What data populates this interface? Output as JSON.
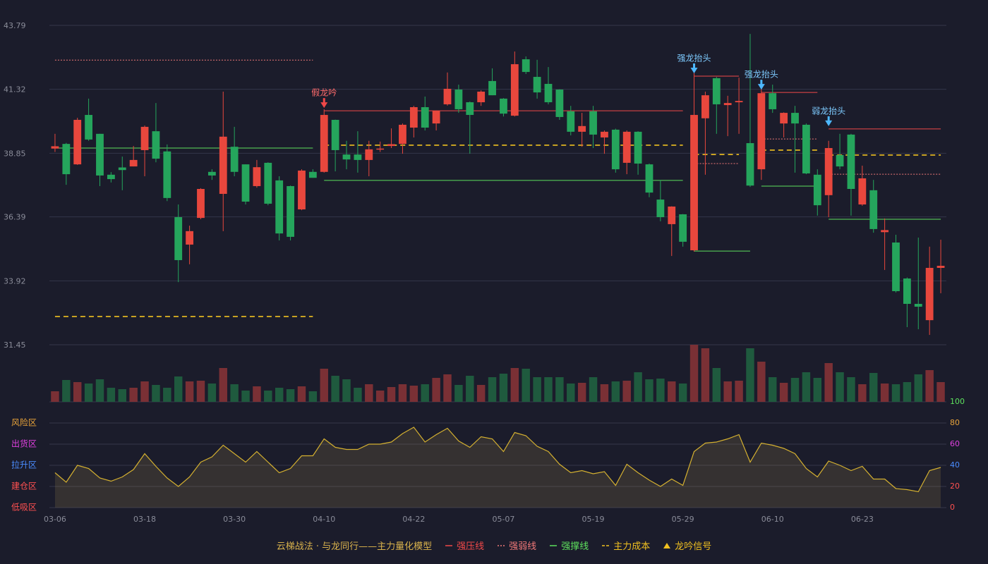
{
  "chart_data": {
    "type": "candlestick",
    "categories": [
      "03-06",
      null,
      null,
      null,
      null,
      null,
      null,
      null,
      "03-18",
      null,
      null,
      null,
      null,
      null,
      null,
      null,
      "03-30",
      null,
      null,
      null,
      null,
      null,
      null,
      null,
      "04-10",
      null,
      null,
      null,
      null,
      null,
      null,
      null,
      "04-22",
      null,
      null,
      null,
      null,
      null,
      null,
      null,
      "05-07",
      null,
      null,
      null,
      null,
      null,
      null,
      null,
      "05-19",
      null,
      null,
      null,
      null,
      null,
      null,
      null,
      "05-29",
      null,
      null,
      null,
      null,
      null,
      null,
      null,
      "06-10",
      null,
      null,
      null,
      null,
      null,
      null,
      null,
      "06-23",
      null,
      null,
      null,
      null,
      null,
      null,
      null
    ],
    "open": [
      39.03,
      39.21,
      38.42,
      40.33,
      39.6,
      38.02,
      38.3,
      38.34,
      38.97,
      39.7,
      38.92,
      36.38,
      35.32,
      36.35,
      38.13,
      37.28,
      39.1,
      38.42,
      37.58,
      38.48,
      37.8,
      37.58,
      36.68,
      38.13,
      38.13,
      40.14,
      38.8,
      38.8,
      38.59,
      39.0,
      39.13,
      39.21,
      39.84,
      40.63,
      40.0,
      40.74,
      41.31,
      40.82,
      40.82,
      41.64,
      40.96,
      40.3,
      42.48,
      41.8,
      41.53,
      41.31,
      40.47,
      39.68,
      40.47,
      39.46,
      39.76,
      38.48,
      39.68,
      38.42,
      37.06,
      36.11,
      36.49,
      35.1,
      40.2,
      41.75,
      40.71,
      40.82,
      39.24,
      38.23,
      41.17,
      40.0,
      40.41,
      39.95,
      38.02,
      37.23,
      38.78,
      39.57,
      36.87,
      37.42,
      35.8,
      35.4,
      34.01,
      33.03,
      32.4,
      34.42
    ],
    "high": [
      39.6,
      39.25,
      40.22,
      40.96,
      39.6,
      38.12,
      38.72,
      39.13,
      39.92,
      40.79,
      39.19,
      36.87,
      36.05,
      37.5,
      38.23,
      41.23,
      39.87,
      38.42,
      38.59,
      38.5,
      37.96,
      37.6,
      38.23,
      38.23,
      40.55,
      40.15,
      39.33,
      39.7,
      39.33,
      39.3,
      39.81,
      40.0,
      40.68,
      41.04,
      40.5,
      41.97,
      41.5,
      40.85,
      41.28,
      42.13,
      40.98,
      42.78,
      42.59,
      42.46,
      42.18,
      41.32,
      40.68,
      40.41,
      40.68,
      39.73,
      39.8,
      39.73,
      39.7,
      38.45,
      37.82,
      36.8,
      36.5,
      42.18,
      41.23,
      41.8,
      41.07,
      41.77,
      43.46,
      41.5,
      41.5,
      40.43,
      40.68,
      40.0,
      38.23,
      39.33,
      39.6,
      39.6,
      38.37,
      37.82,
      36.33,
      35.7,
      34.05,
      35.59,
      35.24,
      35.51
    ],
    "low": [
      38.9,
      37.63,
      38.4,
      39.33,
      37.58,
      37.72,
      37.42,
      38.34,
      37.96,
      38.5,
      37.0,
      33.87,
      34.56,
      36.3,
      37.82,
      35.84,
      37.96,
      36.87,
      37.52,
      36.84,
      35.48,
      35.48,
      36.65,
      37.9,
      38.1,
      38.15,
      38.23,
      38.1,
      37.96,
      38.9,
      39.05,
      38.83,
      39.46,
      39.73,
      39.73,
      40.69,
      40.41,
      38.83,
      40.68,
      41.09,
      40.27,
      40.27,
      41.91,
      40.96,
      40.74,
      40.14,
      39.54,
      39.1,
      39.05,
      38.83,
      38.1,
      38.04,
      38.02,
      37.15,
      36.22,
      34.88,
      35.24,
      35.05,
      38.02,
      39.6,
      39.51,
      39.6,
      37.55,
      37.82,
      40.41,
      39.46,
      38.1,
      38.04,
      36.44,
      36.38,
      38.23,
      36.44,
      36.82,
      35.78,
      34.34,
      33.47,
      32.13,
      32.05,
      31.83,
      33.44
    ],
    "close": [
      39.12,
      38.04,
      40.14,
      39.38,
      37.99,
      37.85,
      38.2,
      38.59,
      39.87,
      38.64,
      37.12,
      34.72,
      35.84,
      37.47,
      37.99,
      39.49,
      38.13,
      36.98,
      38.31,
      36.9,
      35.75,
      35.62,
      38.18,
      37.9,
      40.33,
      38.97,
      38.61,
      38.59,
      39.0,
      39.03,
      39.2,
      39.95,
      40.63,
      39.84,
      40.49,
      41.34,
      40.55,
      40.33,
      41.23,
      41.09,
      40.38,
      42.29,
      41.99,
      41.2,
      40.82,
      40.25,
      39.68,
      39.9,
      39.57,
      39.68,
      38.23,
      39.68,
      38.45,
      37.33,
      36.38,
      36.79,
      35.43,
      40.33,
      41.09,
      40.74,
      40.79,
      40.87,
      37.6,
      41.17,
      40.55,
      40.41,
      40.0,
      38.07,
      36.84,
      39.05,
      38.34,
      37.47,
      37.88,
      35.92,
      35.88,
      33.52,
      33.03,
      32.92,
      34.42,
      34.5
    ],
    "volume": [
      15,
      31,
      28,
      26,
      32,
      20,
      18,
      20,
      29,
      24,
      20,
      36,
      29,
      30,
      26,
      48,
      25,
      16,
      22,
      16,
      20,
      18,
      22,
      15,
      47,
      37,
      32,
      20,
      25,
      16,
      21,
      25,
      23,
      25,
      34,
      39,
      24,
      37,
      24,
      35,
      40,
      48,
      47,
      35,
      35,
      35,
      26,
      27,
      35,
      25,
      29,
      30,
      42,
      32,
      33,
      29,
      26,
      81,
      76,
      48,
      29,
      30,
      76,
      57,
      35,
      27,
      34,
      42,
      34,
      55,
      42,
      35,
      25,
      41,
      26,
      25,
      28,
      39,
      45,
      28
    ],
    "up_color": "#e8473d",
    "down_color": "#25a55c",
    "ylim": [
      31.45,
      43.79
    ],
    "yticks": [
      31.45,
      33.92,
      36.39,
      38.85,
      41.32,
      43.79
    ],
    "grid": true,
    "signals": [
      {
        "label": "假龙吟",
        "x": 24,
        "color": "#ff6b6b"
      },
      {
        "label": "强龙抬头",
        "x": 57,
        "color": "#7ecbff"
      },
      {
        "label": "强龙抬头",
        "x": 63,
        "color": "#7ecbff"
      },
      {
        "label": "弱龙抬头",
        "x": 69,
        "color": "#7ecbff"
      }
    ],
    "indicator": {
      "values": [
        33,
        24,
        40,
        37,
        28,
        25,
        29,
        36,
        51,
        39,
        28,
        20,
        29,
        43,
        48,
        59,
        51,
        43,
        53,
        43,
        33,
        37,
        49,
        49,
        65,
        57,
        55,
        55,
        60,
        60,
        62,
        70,
        76,
        62,
        69,
        75,
        63,
        57,
        67,
        65,
        53,
        71,
        68,
        58,
        53,
        41,
        33,
        35,
        32,
        34,
        21,
        41,
        33,
        26,
        20,
        27,
        21,
        53,
        61,
        62,
        65,
        69,
        43,
        61,
        59,
        56,
        51,
        37,
        29,
        44,
        40,
        35,
        39,
        27,
        27,
        18,
        17,
        15,
        35,
        38
      ],
      "color": "#d4b030",
      "ylim": [
        0,
        100
      ],
      "yticks": [
        0,
        20,
        40,
        60,
        80,
        100
      ],
      "ytick_colors": [
        "#ff5050",
        "#ff5050",
        "#4a8cff",
        "#e040e0",
        "#e8a33a",
        "#5de05d"
      ],
      "zones": [
        {
          "label": "风险区",
          "value": 80,
          "color": "#e8a33a"
        },
        {
          "label": "出货区",
          "value": 60,
          "color": "#e040e0"
        },
        {
          "label": "拉升区",
          "value": 40,
          "color": "#4a8cff"
        },
        {
          "label": "建仓区",
          "value": 20,
          "color": "#ff5050"
        },
        {
          "label": "低吸区",
          "value": 0,
          "color": "#ff5050"
        }
      ]
    },
    "legend": {
      "title": "云梯战法 · 与龙同行——主力量化模型",
      "title_color": "#d9b24c",
      "items": [
        {
          "name": "强压线",
          "color": "#f04848",
          "style": "solid",
          "levels": [
            {
              "x": [
                24,
                56
              ],
              "value": 40.49
            },
            {
              "x": [
                57,
                61
              ],
              "value": 41.83
            },
            {
              "x": [
                63,
                68
              ],
              "value": 41.2
            },
            {
              "x": [
                69,
                79
              ],
              "value": 39.79
            }
          ]
        },
        {
          "name": "强弱线",
          "color": "#f07878",
          "style": "dotted",
          "levels": [
            {
              "x": [
                0,
                23
              ],
              "value": 42.45
            },
            {
              "x": [
                57,
                61
              ],
              "value": 38.45
            },
            {
              "x": [
                63,
                68
              ],
              "value": 39.4
            },
            {
              "x": [
                69,
                79
              ],
              "value": 38.04
            }
          ]
        },
        {
          "name": "强撑线",
          "color": "#5de05d",
          "style": "solid",
          "levels": [
            {
              "x": [
                0,
                23
              ],
              "value": 39.05
            },
            {
              "x": [
                24,
                56
              ],
              "value": 37.8
            },
            {
              "x": [
                57,
                62
              ],
              "value": 35.07
            },
            {
              "x": [
                63,
                68
              ],
              "value": 37.58
            },
            {
              "x": [
                69,
                79
              ],
              "value": 36.3
            }
          ]
        },
        {
          "name": "主力成本",
          "color": "#f0c020",
          "style": "dashed",
          "levels": [
            {
              "x": [
                0,
                23
              ],
              "value": 32.54
            },
            {
              "x": [
                24,
                56
              ],
              "value": 39.16
            },
            {
              "x": [
                57,
                61
              ],
              "value": 38.8
            },
            {
              "x": [
                63,
                68
              ],
              "value": 38.97
            },
            {
              "x": [
                69,
                79
              ],
              "value": 38.78
            }
          ]
        },
        {
          "name": "龙吟信号",
          "color": "#f0c020",
          "style": "triangle",
          "levels": []
        }
      ]
    }
  }
}
